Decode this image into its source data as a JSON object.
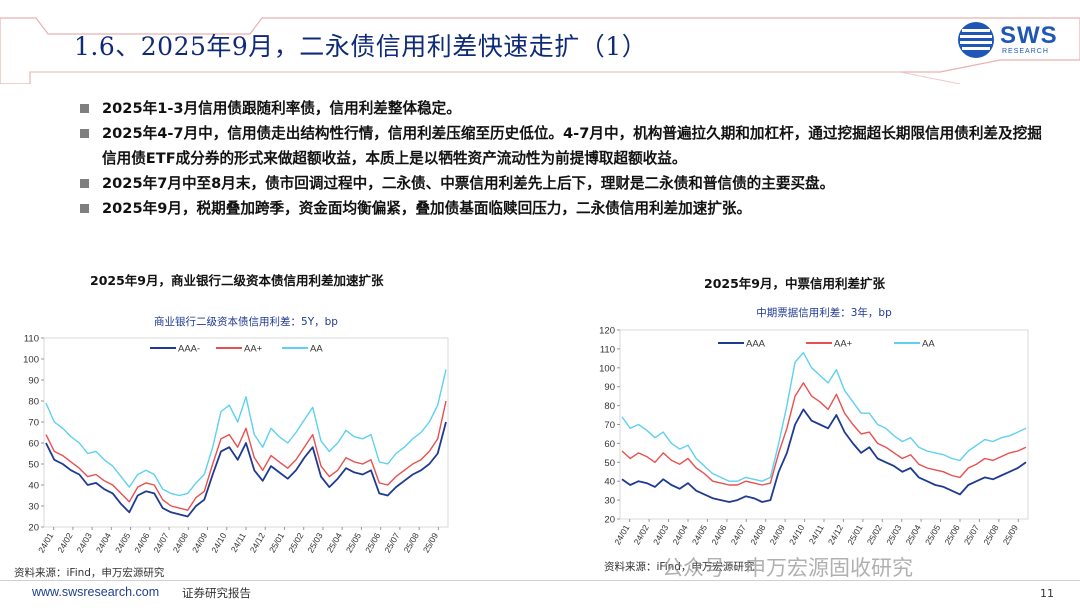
{
  "header": {
    "title": "1.6、2025年9月，二永债信用利差快速走扩（1）"
  },
  "logo": {
    "text": "SWS",
    "sub": "RESEARCH"
  },
  "bullets": [
    "2025年1-3月信用债跟随利率债，信用利差整体稳定。",
    "2025年4-7月中，信用债走出结构性行情，信用利差压缩至历史低位。4-7月中，机构普遍拉久期和加杠杆，通过挖掘超长期限信用债利差及挖掘信用债ETF成分券的形式来做超额收益，本质上是以牺牲资产流动性为前提博取超额收益。",
    "2025年7月中至8月末，债市回调过程中，二永债、中票信用利差先上后下，理财是二永债和普信债的主要买盘。",
    "2025年9月，税期叠加跨季，资金面均衡偏紧，叠加债基面临赎回压力，二永债信用利差加速扩张。"
  ],
  "left_panel": {
    "heading": "2025年9月，商业银行二级资本债信用利差加速扩张",
    "source": "资料来源：iFind，申万宏源研究"
  },
  "right_panel": {
    "heading": "2025年9月，中票信用利差扩张",
    "source": "资料来源：iFind，申万宏源研究"
  },
  "footer": {
    "url": "www.swsresearch.com",
    "doc_type": "证券研究报告",
    "page": "11"
  },
  "watermark": "公众号 · 申万宏源固收研究",
  "colors": {
    "AAA": "#1f3a93",
    "AA+": "#e8504f",
    "AA": "#5ed0f0",
    "title": "#0f2a78"
  },
  "chart_data": [
    {
      "type": "line",
      "title": "商业银行二级资本债信用利差：5Y，bp",
      "x_ticks": [
        "24/01",
        "24/02",
        "24/03",
        "24/04",
        "24/05",
        "24/06",
        "24/07",
        "24/08",
        "24/09",
        "24/10",
        "24/11",
        "24/12",
        "25/01",
        "25/02",
        "25/03",
        "25/04",
        "25/05",
        "25/06",
        "25/07",
        "25/08",
        "25/09"
      ],
      "ylim": [
        20,
        110
      ],
      "y_ticks": [
        20,
        30,
        40,
        50,
        60,
        70,
        80,
        90,
        100,
        110
      ],
      "series": [
        {
          "name": "AAA-",
          "values": [
            60,
            52,
            50,
            47,
            45,
            40,
            41,
            38,
            36,
            31,
            27,
            35,
            37,
            36,
            29,
            27,
            26,
            25,
            30,
            33,
            45,
            56,
            58,
            52,
            60,
            47,
            42,
            49,
            46,
            43,
            47,
            53,
            58,
            44,
            39,
            43,
            48,
            46,
            45,
            47,
            36,
            35,
            39,
            42,
            45,
            47,
            50,
            55,
            70
          ]
        },
        {
          "name": "AA+",
          "values": [
            64,
            56,
            54,
            51,
            48,
            44,
            45,
            42,
            40,
            36,
            32,
            39,
            41,
            40,
            33,
            30,
            29,
            28,
            34,
            37,
            50,
            62,
            64,
            58,
            67,
            53,
            47,
            54,
            51,
            48,
            52,
            58,
            64,
            49,
            44,
            47,
            53,
            51,
            50,
            52,
            41,
            40,
            44,
            47,
            50,
            52,
            56,
            62,
            80
          ]
        },
        {
          "name": "AA",
          "values": [
            79,
            70,
            67,
            63,
            60,
            55,
            56,
            52,
            49,
            44,
            39,
            45,
            47,
            45,
            38,
            36,
            35,
            36,
            41,
            45,
            58,
            75,
            78,
            70,
            82,
            64,
            58,
            67,
            63,
            60,
            65,
            71,
            77,
            61,
            56,
            60,
            66,
            63,
            62,
            64,
            51,
            50,
            55,
            58,
            62,
            65,
            70,
            78,
            95
          ]
        }
      ]
    },
    {
      "type": "line",
      "title": "中期票据信用利差：3年，bp",
      "x_ticks": [
        "24/01",
        "24/02",
        "24/03",
        "24/04",
        "24/05",
        "24/06",
        "24/07",
        "24/08",
        "24/09",
        "24/10",
        "24/11",
        "24/12",
        "25/01",
        "25/02",
        "25/03",
        "25/04",
        "25/05",
        "25/06",
        "25/07",
        "25/08",
        "25/09"
      ],
      "ylim": [
        20,
        120
      ],
      "y_ticks": [
        20,
        30,
        40,
        50,
        60,
        70,
        80,
        90,
        100,
        110,
        120
      ],
      "series": [
        {
          "name": "AAA",
          "values": [
            41,
            38,
            40,
            39,
            37,
            41,
            38,
            36,
            39,
            35,
            33,
            31,
            30,
            29,
            30,
            32,
            31,
            29,
            30,
            45,
            55,
            70,
            78,
            72,
            70,
            68,
            75,
            66,
            60,
            55,
            58,
            52,
            50,
            48,
            45,
            47,
            42,
            40,
            38,
            37,
            35,
            33,
            38,
            40,
            42,
            41,
            43,
            45,
            47,
            50
          ]
        },
        {
          "name": "AA+",
          "values": [
            56,
            52,
            55,
            53,
            50,
            55,
            51,
            49,
            52,
            47,
            44,
            40,
            39,
            38,
            38,
            40,
            39,
            38,
            39,
            55,
            68,
            85,
            92,
            85,
            82,
            78,
            86,
            76,
            70,
            65,
            66,
            60,
            58,
            55,
            52,
            54,
            49,
            47,
            46,
            45,
            43,
            42,
            47,
            49,
            52,
            51,
            53,
            55,
            56,
            58
          ]
        },
        {
          "name": "AA",
          "values": [
            74,
            68,
            70,
            67,
            63,
            66,
            60,
            57,
            59,
            52,
            48,
            44,
            42,
            40,
            40,
            42,
            41,
            40,
            42,
            60,
            80,
            103,
            108,
            100,
            96,
            92,
            99,
            88,
            82,
            76,
            76,
            70,
            68,
            64,
            61,
            63,
            58,
            56,
            55,
            54,
            52,
            51,
            56,
            59,
            62,
            61,
            63,
            64,
            66,
            68
          ]
        }
      ]
    }
  ]
}
